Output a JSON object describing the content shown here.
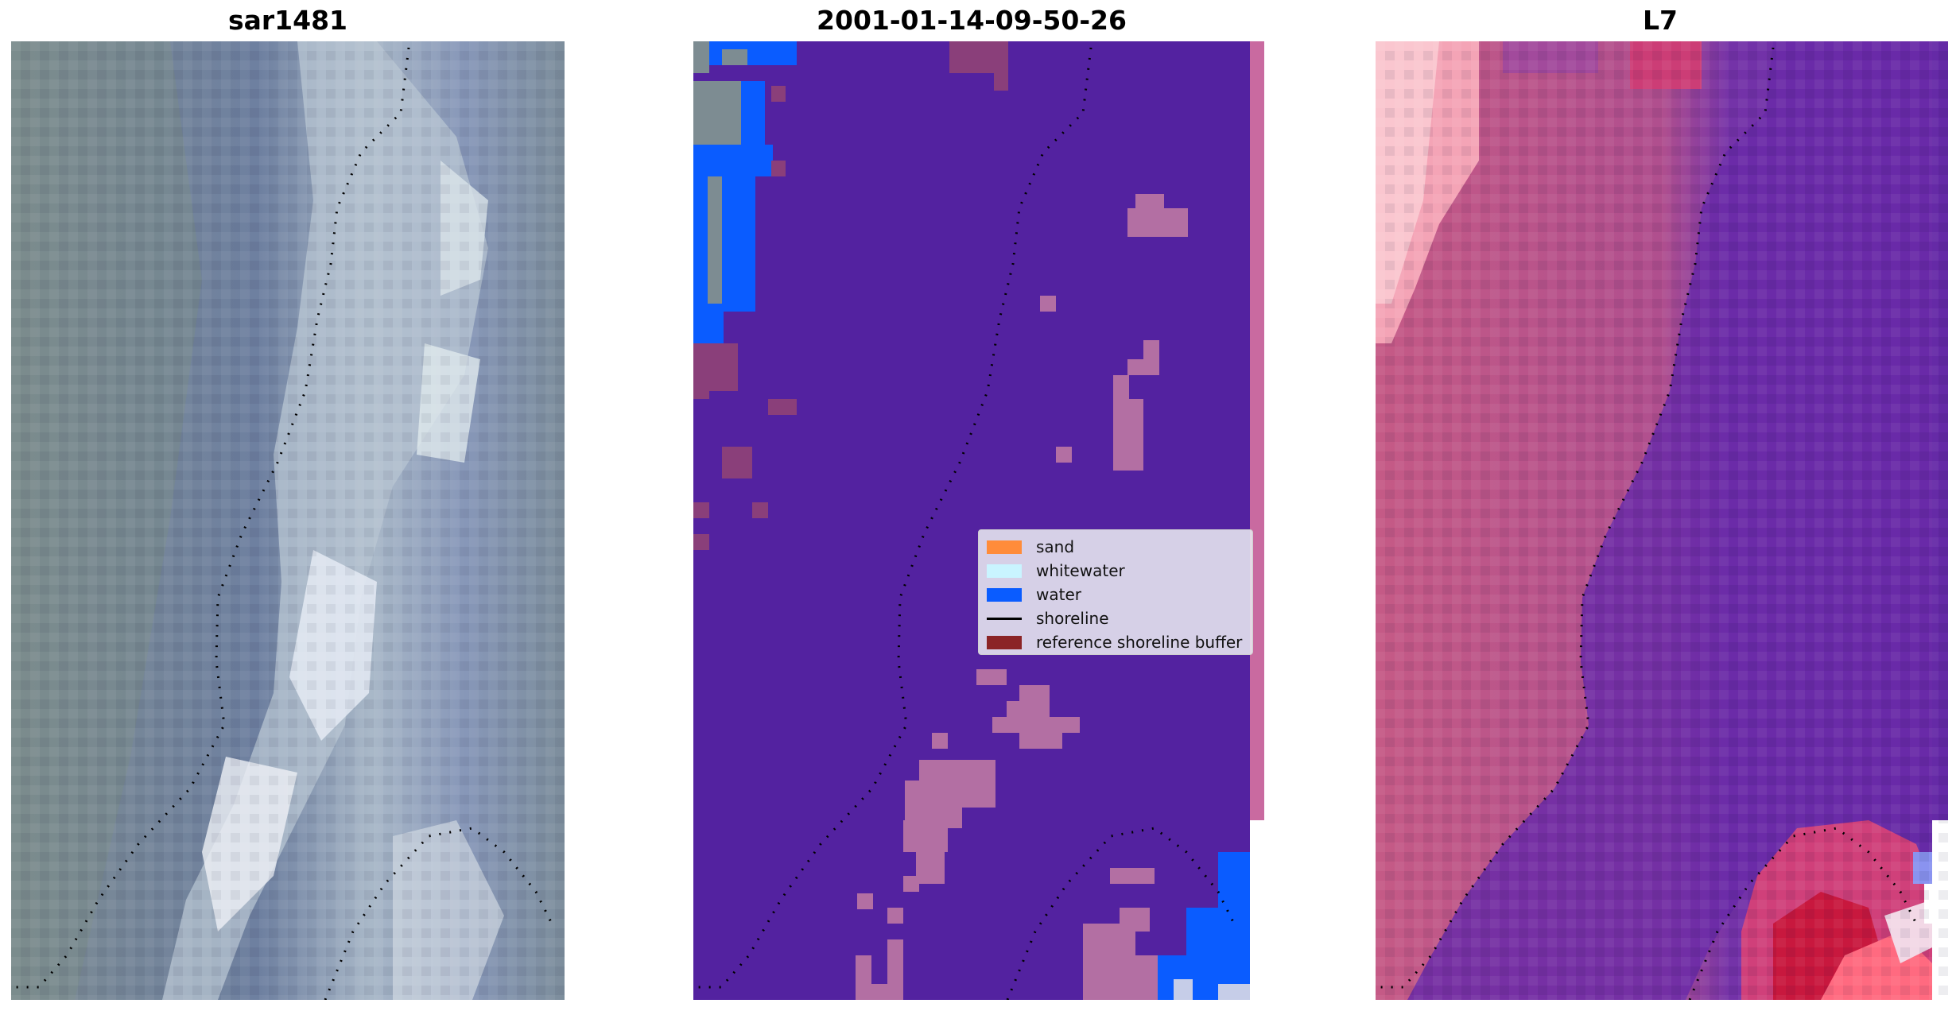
{
  "titles": {
    "left": "sar1481",
    "middle": "2001-01-14-09-50-26",
    "right": "L7"
  },
  "legend": {
    "items": [
      {
        "label": "sand",
        "kind": "patch",
        "color": "#ff8c3a"
      },
      {
        "label": "whitewater",
        "kind": "patch",
        "color": "#c9f4ff"
      },
      {
        "label": "water",
        "kind": "patch",
        "color": "#0a5cff"
      },
      {
        "label": "shoreline",
        "kind": "line",
        "color": "#000000"
      },
      {
        "label": "reference shoreline buffer",
        "kind": "patch",
        "color": "#8b2426"
      }
    ]
  },
  "colors": {
    "land_class": "#5322a0",
    "buffer_overlay": "#b36fa3",
    "edge_strip": "#c96aa0",
    "water": "#0a5cff"
  }
}
